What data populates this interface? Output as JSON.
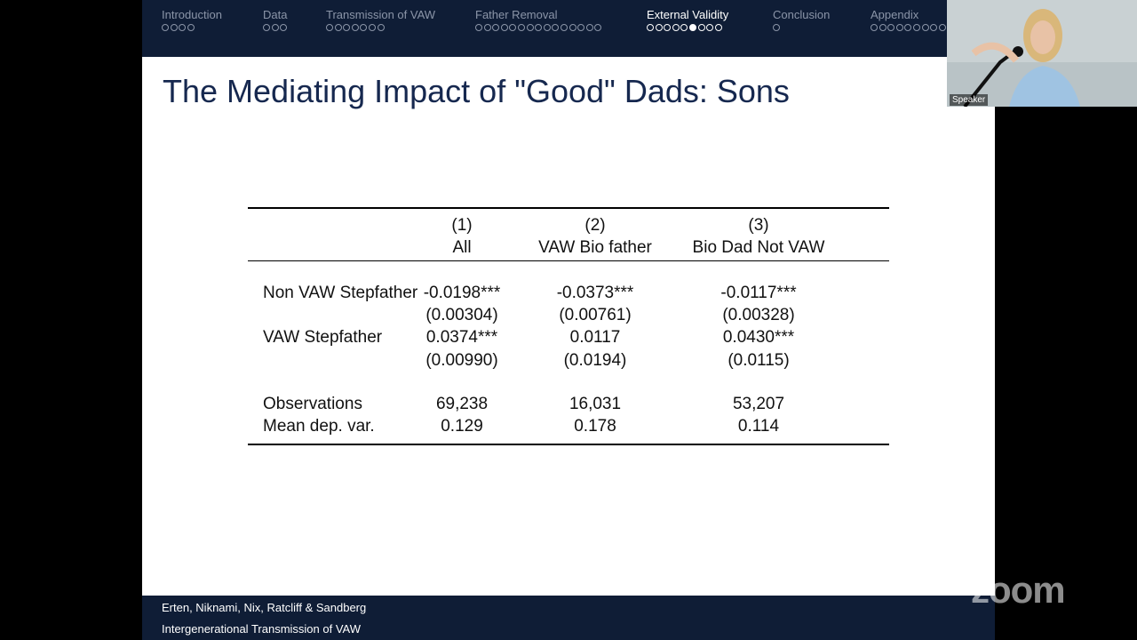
{
  "nav": {
    "sections": [
      {
        "label": "Introduction",
        "dots": 4,
        "current": -1,
        "active": false
      },
      {
        "label": "Data",
        "dots": 3,
        "current": -1,
        "active": false
      },
      {
        "label": "Transmission of VAW",
        "dots": 7,
        "current": -1,
        "active": false
      },
      {
        "label": "Father Removal",
        "dots": 15,
        "current": -1,
        "active": false
      },
      {
        "label": "External Validity",
        "dots": 9,
        "current": 5,
        "active": true
      },
      {
        "label": "Conclusion",
        "dots": 1,
        "current": -1,
        "active": false
      },
      {
        "label": "Appendix",
        "dots": 9,
        "current": -1,
        "active": false
      }
    ]
  },
  "title": "The Mediating Impact of \"Good\" Dads: Sons",
  "table": {
    "col_numbers": [
      "(1)",
      "(2)",
      "(3)"
    ],
    "col_names": [
      "All",
      "VAW Bio father",
      "Bio Dad Not VAW"
    ],
    "rows": [
      {
        "label": "Non VAW Stepfather",
        "coefs": [
          "-0.0198***",
          "-0.0373***",
          "-0.0117***"
        ],
        "ses": [
          "(0.00304)",
          "(0.00761)",
          "(0.00328)"
        ]
      },
      {
        "label": "VAW Stepfather",
        "coefs": [
          "0.0374***",
          "0.0117",
          "0.0430***"
        ],
        "ses": [
          "(0.00990)",
          "(0.0194)",
          "(0.0115)"
        ]
      }
    ],
    "stats": [
      {
        "label": "Observations",
        "values": [
          "69,238",
          "16,031",
          "53,207"
        ]
      },
      {
        "label": "Mean dep. var.",
        "values": [
          "0.129",
          "0.178",
          "0.114"
        ]
      }
    ]
  },
  "footer": {
    "authors": "Erten, Niknami, Nix, Ratcliff & Sandberg",
    "short_title": "Intergenerational Transmission of VAW"
  },
  "speaker": {
    "label": "Speaker"
  },
  "zoom": {
    "logo": "zoom"
  }
}
